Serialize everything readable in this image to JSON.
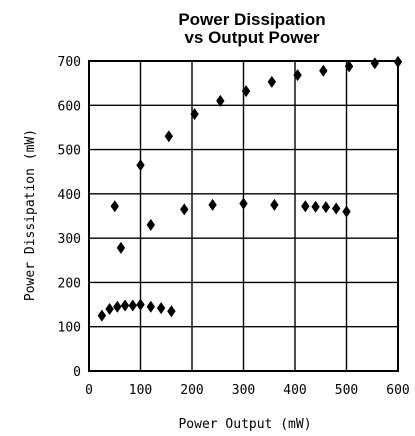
{
  "chart_data": {
    "type": "scatter",
    "title_lines": [
      "Power Dissipation",
      "vs Output Power"
    ],
    "xlabel": "Power Output (mW)",
    "ylabel": "Power Dissipation (mW)",
    "xlim": [
      0,
      600
    ],
    "ylim": [
      0,
      700
    ],
    "xticks": [
      0,
      100,
      200,
      300,
      400,
      500,
      600
    ],
    "yticks": [
      0,
      100,
      200,
      300,
      400,
      500,
      600,
      700
    ],
    "grid": true,
    "marker": "diamond",
    "series": [
      {
        "points": [
          [
            25,
            125
          ],
          [
            40,
            140
          ],
          [
            55,
            145
          ],
          [
            70,
            148
          ],
          [
            85,
            148
          ],
          [
            100,
            150
          ],
          [
            120,
            145
          ],
          [
            140,
            142
          ],
          [
            160,
            135
          ]
        ]
      },
      {
        "points": [
          [
            50,
            372
          ],
          [
            62,
            278
          ],
          [
            120,
            330
          ],
          [
            185,
            365
          ],
          [
            240,
            375
          ],
          [
            300,
            378
          ],
          [
            360,
            375
          ],
          [
            420,
            372
          ],
          [
            440,
            371
          ],
          [
            460,
            370
          ],
          [
            480,
            367
          ],
          [
            500,
            360
          ]
        ]
      },
      {
        "points": [
          [
            100,
            465
          ],
          [
            155,
            530
          ],
          [
            205,
            580
          ],
          [
            255,
            610
          ],
          [
            305,
            632
          ],
          [
            355,
            653
          ],
          [
            405,
            668
          ],
          [
            455,
            678
          ],
          [
            505,
            688
          ],
          [
            555,
            695
          ],
          [
            600,
            698
          ]
        ]
      }
    ]
  }
}
